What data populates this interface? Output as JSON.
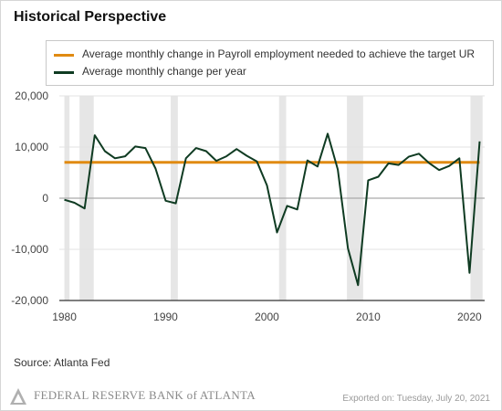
{
  "title": "Historical Perspective",
  "source": "Source: Atlanta Fed",
  "footer": {
    "logo_text": "FEDERAL RESERVE BANK of ATLANTA",
    "exported": "Exported on: Tuesday, July 20, 2021"
  },
  "colors": {
    "target_line": "#e08a12",
    "series_line": "#0f3b22",
    "recession_band": "#e6e6e6",
    "zero_line": "#aaaaaa",
    "grid": "#e3e3e3"
  },
  "chart_data": {
    "type": "line",
    "title": "Historical Perspective",
    "xlim": [
      1979.5,
      2021.5
    ],
    "ylim": [
      -20000,
      20000
    ],
    "x_ticks": [
      1980,
      1990,
      2000,
      2010,
      2020
    ],
    "y_ticks": [
      20000,
      10000,
      0,
      -10000,
      -20000
    ],
    "x_tick_labels": [
      "1980",
      "1990",
      "2000",
      "2010",
      "2020"
    ],
    "y_tick_labels": [
      "20,000",
      "10,000",
      "0",
      "-10,000",
      "-20,000"
    ],
    "grid": true,
    "legend_position": "top",
    "recessions": [
      [
        1980.0,
        1980.5
      ],
      [
        1981.5,
        1982.9
      ],
      [
        1990.5,
        1991.2
      ],
      [
        2001.2,
        2001.9
      ],
      [
        2007.9,
        2009.5
      ],
      [
        2020.1,
        2021.3
      ]
    ],
    "series": [
      {
        "name": "Average monthly change in Payroll employment needed to achieve the target UR",
        "x": [
          1980,
          2021
        ],
        "values": [
          7000,
          7000
        ]
      },
      {
        "name": "Average monthly change per year",
        "x": [
          1980,
          1981,
          1982,
          1983,
          1984,
          1985,
          1986,
          1987,
          1988,
          1989,
          1990,
          1991,
          1992,
          1993,
          1994,
          1995,
          1996,
          1997,
          1998,
          1999,
          2000,
          2001,
          2002,
          2003,
          2004,
          2005,
          2006,
          2007,
          2008,
          2009,
          2010,
          2011,
          2012,
          2013,
          2014,
          2015,
          2016,
          2017,
          2018,
          2019,
          2020,
          2021
        ],
        "values": [
          -300,
          -900,
          -2000,
          12300,
          9200,
          7800,
          8200,
          10100,
          9800,
          5800,
          -500,
          -1000,
          7800,
          9800,
          9200,
          7300,
          8200,
          9600,
          8300,
          7200,
          2500,
          -6700,
          -1500,
          -2200,
          7400,
          6200,
          12600,
          5600,
          -9800,
          -17000,
          3500,
          4200,
          6800,
          6500,
          8100,
          8700,
          6900,
          5500,
          6300,
          7800,
          -14600,
          11100
        ]
      }
    ]
  }
}
